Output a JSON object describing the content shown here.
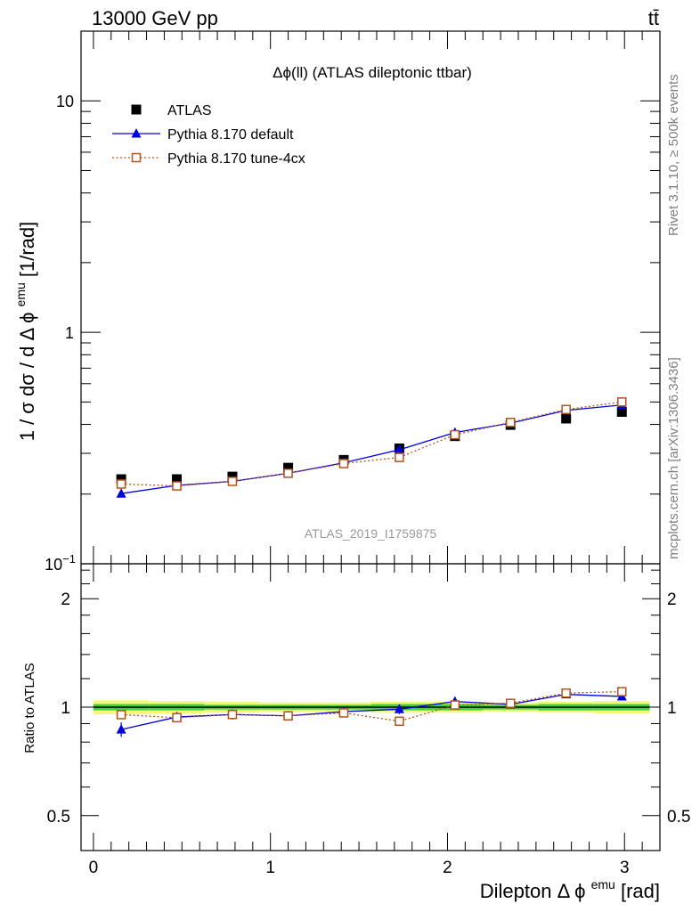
{
  "header": {
    "left": "13000 GeV pp",
    "right": "tt̄"
  },
  "side_labels": {
    "top": "Rivet 3.1.10, ≥ 500k events",
    "bottom": "mcplots.cern.ch [arXiv:1306.3436]"
  },
  "chart_data": [
    {
      "type": "scatter",
      "title": "Δϕ(ll) (ATLAS dileptonic ttbar)",
      "watermark": "ATLAS_2019_I1759875",
      "ylabel": "1 / σ  dσ / dΔ ϕemu [1/rad]",
      "ylabel_parts": {
        "main": "1 / σ  dσ / d Δ ϕ",
        "sup": "emu",
        "unit": "[1/rad]"
      },
      "yscale": "log",
      "ylim": [
        0.1,
        20
      ],
      "xlim": [
        -0.07,
        3.2
      ],
      "y_ticks": [
        {
          "v": 0.1,
          "base": "10",
          "exp": "−1"
        },
        {
          "v": 1,
          "text": "1"
        },
        {
          "v": 10,
          "text": "10"
        }
      ],
      "legend_position": "top-left",
      "x": [
        0.157,
        0.471,
        0.785,
        1.1,
        1.414,
        1.728,
        2.042,
        2.356,
        2.67,
        2.985
      ],
      "series": [
        {
          "name": "ATLAS",
          "marker": "filled-square",
          "color": "#000000",
          "values": [
            0.232,
            0.232,
            0.238,
            0.26,
            0.281,
            0.315,
            0.356,
            0.398,
            0.424,
            0.453
          ]
        },
        {
          "name": "Pythia 8.170 default",
          "marker": "filled-triangle",
          "line": "solid",
          "color": "#0000dd",
          "values": [
            0.201,
            0.218,
            0.227,
            0.246,
            0.273,
            0.311,
            0.369,
            0.405,
            0.46,
            0.485
          ]
        },
        {
          "name": "Pythia 8.170 tune-4cx",
          "marker": "open-square",
          "line": "dotted",
          "color": "#b5521c",
          "values": [
            0.221,
            0.217,
            0.227,
            0.246,
            0.271,
            0.288,
            0.361,
            0.408,
            0.464,
            0.5
          ]
        }
      ]
    },
    {
      "type": "scatter",
      "ylabel": "Ratio to ATLAS",
      "yscale": "log",
      "ylim": [
        0.4,
        2.5
      ],
      "xlim": [
        -0.07,
        3.2
      ],
      "xlabel": "Dilepton Δ ϕemu [rad]",
      "xlabel_parts": {
        "main": "Dilepton Δ ϕ",
        "sup": "emu",
        "unit": "[rad]"
      },
      "x_ticks": [
        "0",
        "1",
        "2",
        "3"
      ],
      "y_ticks": [
        "0.5",
        "1",
        "2"
      ],
      "x": [
        0.157,
        0.471,
        0.785,
        1.1,
        1.414,
        1.728,
        2.042,
        2.356,
        2.67,
        2.985
      ],
      "series": [
        {
          "name": "Pythia 8.170 default",
          "color": "#0000dd",
          "values": [
            0.867,
            0.939,
            0.954,
            0.946,
            0.972,
            0.987,
            1.037,
            1.018,
            1.085,
            1.071
          ],
          "errors": [
            0.04,
            0.03,
            0.03,
            0.02,
            0.02,
            0.03,
            0.03,
            0.02,
            0.02,
            0.02
          ]
        },
        {
          "name": "Pythia 8.170 tune-4cx",
          "color": "#b5521c",
          "values": [
            0.953,
            0.935,
            0.954,
            0.946,
            0.964,
            0.914,
            1.014,
            1.025,
            1.094,
            1.104
          ],
          "errors": [
            0.02,
            0.02,
            0.02,
            0.02,
            0.02,
            0.02,
            0.02,
            0.02,
            0.02,
            0.02
          ]
        }
      ],
      "band": {
        "color_inner": "#3fcf3f",
        "color_outer": "#f4f77a",
        "x_edges": [
          0,
          0.314,
          0.628,
          0.942,
          1.256,
          1.57,
          1.885,
          2.199,
          2.513,
          2.827,
          3.142
        ],
        "inner": [
          0.02,
          0.02,
          0.015,
          0.015,
          0.015,
          0.02,
          0.02,
          0.015,
          0.02,
          0.02
        ],
        "outer": [
          0.045,
          0.04,
          0.035,
          0.03,
          0.03,
          0.035,
          0.035,
          0.03,
          0.035,
          0.04
        ]
      }
    }
  ]
}
